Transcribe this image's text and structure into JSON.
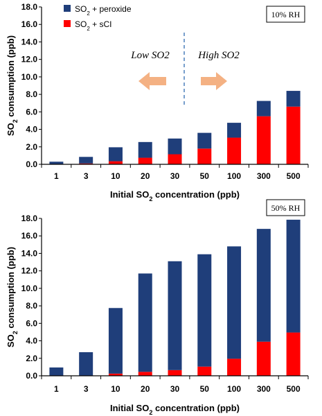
{
  "chart_data": [
    {
      "type": "bar",
      "stacked": true,
      "panel_label": "10% RH",
      "categories": [
        "1",
        "3",
        "10",
        "20",
        "30",
        "50",
        "100",
        "300",
        "500"
      ],
      "series": [
        {
          "name": "SO2 + sCI",
          "values": [
            0.0,
            0.1,
            0.35,
            0.75,
            1.15,
            1.8,
            3.05,
            5.5,
            6.6
          ],
          "color": "#ff0000"
        },
        {
          "name": "SO2 + peroxide",
          "values": [
            0.3,
            0.75,
            1.6,
            1.8,
            1.8,
            1.8,
            1.7,
            1.75,
            1.8
          ],
          "color": "#1f3e7a"
        }
      ],
      "xlabel_parts": [
        "Initial SO",
        "2",
        " concentration (ppb)"
      ],
      "ylabel_parts": [
        "SO",
        "2",
        " consumption (ppb)"
      ],
      "ylim": [
        0,
        18
      ],
      "yticks": [
        "0.0",
        "2.0",
        "4.0",
        "6.0",
        "8.0",
        "10.0",
        "12.0",
        "14.0",
        "16.0",
        "18.0"
      ],
      "grid": false,
      "legend_position": "top-left",
      "legend": [
        {
          "parts": [
            "SO",
            "2",
            " + peroxide"
          ],
          "color": "#1f3e7a"
        },
        {
          "parts": [
            "SO",
            "2",
            " + sCI"
          ],
          "color": "#ff0000"
        }
      ],
      "annotations": {
        "low": [
          "Low SO",
          "2"
        ],
        "high": [
          "High SO",
          "2"
        ],
        "arrow_color": "#f4b183",
        "divider_color": "#4a7ebb"
      }
    },
    {
      "type": "bar",
      "stacked": true,
      "panel_label": "50% RH",
      "categories": [
        "1",
        "3",
        "10",
        "20",
        "30",
        "50",
        "100",
        "300",
        "500"
      ],
      "series": [
        {
          "name": "SO2 + sCI",
          "values": [
            0.0,
            0.0,
            0.25,
            0.45,
            0.65,
            1.05,
            1.95,
            3.9,
            4.95
          ],
          "color": "#ff0000"
        },
        {
          "name": "SO2 + peroxide",
          "values": [
            0.95,
            2.7,
            7.5,
            11.25,
            12.45,
            12.85,
            12.85,
            12.9,
            12.9
          ],
          "color": "#1f3e7a"
        }
      ],
      "xlabel_parts": [
        "Initial SO",
        "2",
        " concentration (ppb)"
      ],
      "ylabel_parts": [
        "SO",
        "2",
        " consumption (ppb)"
      ],
      "ylim": [
        0,
        18
      ],
      "yticks": [
        "0.0",
        "2.0",
        "4.0",
        "6.0",
        "8.0",
        "10.0",
        "12.0",
        "14.0",
        "16.0",
        "18.0"
      ],
      "grid": false
    }
  ]
}
